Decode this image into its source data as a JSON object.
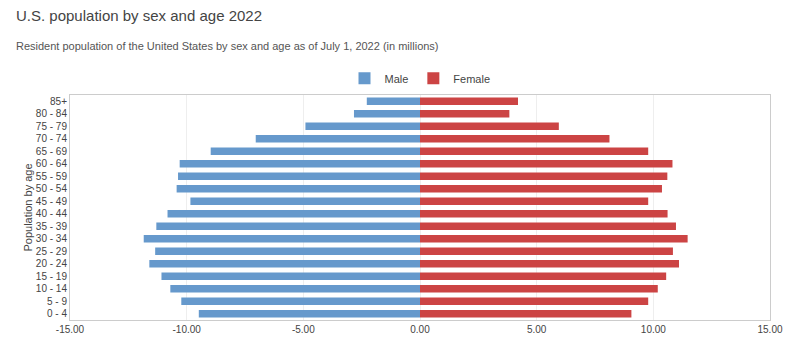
{
  "chart_data": {
    "type": "bar",
    "orientation": "horizontal",
    "title": "U.S. population by sex and age 2022",
    "subtitle": "Resident population of the United States by sex and age as of July 1, 2022 (in millions)",
    "y_label": "Population by age",
    "categories": [
      "0 - 4",
      "5 - 9",
      "10 - 14",
      "15 - 19",
      "20 - 24",
      "25 - 29",
      "30 - 34",
      "35 - 39",
      "40 - 44",
      "45 - 49",
      "50 - 54",
      "55 - 59",
      "60 - 64",
      "65 - 69",
      "70 - 74",
      "75 - 79",
      "80 - 84",
      "85+"
    ],
    "series": [
      {
        "name": "Male",
        "color": "#6699cc",
        "values": [
          -9.48,
          -10.23,
          -10.7,
          -11.08,
          -11.6,
          -11.35,
          -11.84,
          -11.3,
          -10.82,
          -9.84,
          -10.43,
          -10.37,
          -10.3,
          -8.97,
          -7.04,
          -4.91,
          -2.83,
          -2.28
        ]
      },
      {
        "name": "Female",
        "color": "#cc4444",
        "values": [
          9.06,
          9.78,
          10.19,
          10.55,
          11.1,
          10.84,
          11.47,
          10.97,
          10.61,
          9.78,
          10.37,
          10.6,
          10.82,
          9.78,
          8.12,
          5.95,
          3.83,
          4.2
        ]
      }
    ],
    "xlim": [
      -15,
      15
    ],
    "xticks": [
      {
        "value": -15,
        "label": "-15.00"
      },
      {
        "value": -10,
        "label": "-10.00"
      },
      {
        "value": -5,
        "label": "-5.00"
      },
      {
        "value": 0,
        "label": "0.00"
      },
      {
        "value": 5,
        "label": "5.00"
      },
      {
        "value": 10,
        "label": "10.00"
      },
      {
        "value": 15,
        "label": "15.00"
      }
    ],
    "grid": true,
    "legend": "top"
  }
}
